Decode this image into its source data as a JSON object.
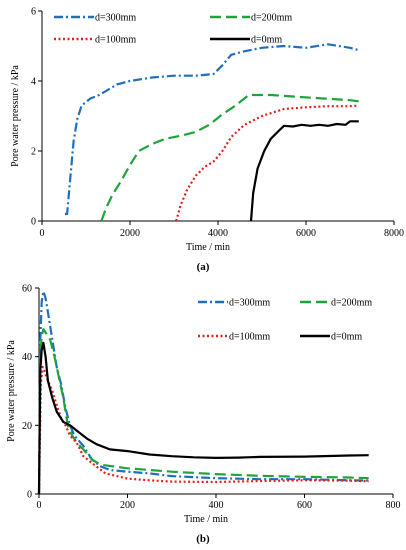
{
  "colors": {
    "d300": "#1f6fc1",
    "d200": "#1fa43a",
    "d100": "#e0201a",
    "d0": "#000000"
  },
  "chart_data": [
    {
      "type": "line",
      "panel_label": "(a)",
      "xlabel": "Time / min",
      "ylabel": "Pore water pressure / kPa",
      "xlim": [
        0,
        8000
      ],
      "ylim": [
        0,
        6
      ],
      "xticks": [
        "0",
        "2000",
        "4000",
        "6000",
        "8000"
      ],
      "yticks": [
        "0",
        "2",
        "4",
        "6"
      ],
      "grid": false,
      "legend_placement": "top",
      "series": [
        {
          "name": "d=300mm",
          "style": "dashdot",
          "color_key": "d300",
          "points": [
            [
              520,
              0.2
            ],
            [
              570,
              0.2
            ],
            [
              640,
              1.2
            ],
            [
              720,
              2.3
            ],
            [
              800,
              2.9
            ],
            [
              900,
              3.3
            ],
            [
              1100,
              3.5
            ],
            [
              1300,
              3.6
            ],
            [
              1500,
              3.75
            ],
            [
              1700,
              3.9
            ],
            [
              2000,
              4.0
            ],
            [
              2500,
              4.1
            ],
            [
              3000,
              4.15
            ],
            [
              3500,
              4.15
            ],
            [
              3900,
              4.2
            ],
            [
              4100,
              4.45
            ],
            [
              4300,
              4.75
            ],
            [
              4600,
              4.85
            ],
            [
              5000,
              4.95
            ],
            [
              5500,
              5.0
            ],
            [
              6000,
              4.95
            ],
            [
              6500,
              5.05
            ],
            [
              7000,
              4.95
            ],
            [
              7200,
              4.88
            ]
          ]
        },
        {
          "name": "d=200mm",
          "style": "longdash",
          "color_key": "d200",
          "points": [
            [
              1350,
              0
            ],
            [
              1450,
              0.35
            ],
            [
              1600,
              0.75
            ],
            [
              1800,
              1.15
            ],
            [
              2000,
              1.6
            ],
            [
              2200,
              2.0
            ],
            [
              2500,
              2.2
            ],
            [
              2800,
              2.35
            ],
            [
              3200,
              2.45
            ],
            [
              3500,
              2.55
            ],
            [
              3800,
              2.75
            ],
            [
              4100,
              3.05
            ],
            [
              4400,
              3.3
            ],
            [
              4700,
              3.6
            ],
            [
              5200,
              3.6
            ],
            [
              5800,
              3.55
            ],
            [
              6400,
              3.5
            ],
            [
              7000,
              3.45
            ],
            [
              7200,
              3.42
            ]
          ]
        },
        {
          "name": "d=100mm",
          "style": "dotted",
          "color_key": "d100",
          "points": [
            [
              3050,
              0
            ],
            [
              3150,
              0.45
            ],
            [
              3300,
              0.9
            ],
            [
              3500,
              1.3
            ],
            [
              3700,
              1.55
            ],
            [
              3900,
              1.7
            ],
            [
              4100,
              2.0
            ],
            [
              4300,
              2.4
            ],
            [
              4600,
              2.75
            ],
            [
              5000,
              3.0
            ],
            [
              5500,
              3.2
            ],
            [
              6000,
              3.25
            ],
            [
              6500,
              3.28
            ],
            [
              7000,
              3.28
            ],
            [
              7200,
              3.3
            ]
          ]
        },
        {
          "name": "d=0mm",
          "style": "solid",
          "color_key": "d0",
          "points": [
            [
              4750,
              0
            ],
            [
              4800,
              0.8
            ],
            [
              4900,
              1.5
            ],
            [
              5050,
              2.0
            ],
            [
              5200,
              2.35
            ],
            [
              5400,
              2.6
            ],
            [
              5500,
              2.72
            ],
            [
              5700,
              2.7
            ],
            [
              5900,
              2.75
            ],
            [
              6100,
              2.72
            ],
            [
              6300,
              2.75
            ],
            [
              6500,
              2.72
            ],
            [
              6700,
              2.77
            ],
            [
              6900,
              2.75
            ],
            [
              7000,
              2.85
            ],
            [
              7200,
              2.85
            ]
          ]
        }
      ]
    },
    {
      "type": "line",
      "panel_label": "(b)",
      "xlabel": "Time / min",
      "ylabel": "Pore water pressure / kPa",
      "xlim": [
        0,
        800
      ],
      "ylim": [
        0,
        60
      ],
      "xticks": [
        "0",
        "200",
        "400",
        "600",
        "800"
      ],
      "yticks": [
        "0",
        "20",
        "40",
        "60"
      ],
      "grid": false,
      "legend_placement": "top-right",
      "series": [
        {
          "name": "d=300mm",
          "style": "dashdot",
          "color_key": "d300",
          "points": [
            [
              0,
              0
            ],
            [
              3,
              45
            ],
            [
              6,
              56
            ],
            [
              10,
              59
            ],
            [
              15,
              57
            ],
            [
              20,
              53
            ],
            [
              30,
              45
            ],
            [
              40,
              37
            ],
            [
              50,
              32
            ],
            [
              60,
              25
            ],
            [
              70,
              20
            ],
            [
              80,
              17
            ],
            [
              100,
              14
            ],
            [
              120,
              10
            ],
            [
              140,
              8
            ],
            [
              160,
              7
            ],
            [
              200,
              6.5
            ],
            [
              250,
              6
            ],
            [
              300,
              5.2
            ],
            [
              400,
              4.6
            ],
            [
              500,
              4.3
            ],
            [
              600,
              4.3
            ],
            [
              700,
              4.0
            ],
            [
              745,
              3.9
            ]
          ]
        },
        {
          "name": "d=200mm",
          "style": "longdash",
          "color_key": "d200",
          "points": [
            [
              0,
              0
            ],
            [
              3,
              40
            ],
            [
              6,
              46
            ],
            [
              10,
              48
            ],
            [
              15,
              47
            ],
            [
              25,
              45
            ],
            [
              35,
              40
            ],
            [
              45,
              34
            ],
            [
              55,
              28
            ],
            [
              65,
              20
            ],
            [
              75,
              17
            ],
            [
              85,
              15
            ],
            [
              100,
              13
            ],
            [
              120,
              10
            ],
            [
              140,
              8.5
            ],
            [
              170,
              8
            ],
            [
              200,
              7.5
            ],
            [
              250,
              7
            ],
            [
              300,
              6.5
            ],
            [
              400,
              5.8
            ],
            [
              500,
              5.3
            ],
            [
              600,
              5.0
            ],
            [
              700,
              4.8
            ],
            [
              745,
              4.6
            ]
          ]
        },
        {
          "name": "d=100mm",
          "style": "dotted",
          "color_key": "d100",
          "points": [
            [
              0,
              0
            ],
            [
              4,
              32
            ],
            [
              8,
              37
            ],
            [
              12,
              36
            ],
            [
              20,
              33
            ],
            [
              30,
              30
            ],
            [
              40,
              26
            ],
            [
              50,
              22
            ],
            [
              60,
              20
            ],
            [
              70,
              17
            ],
            [
              85,
              15
            ],
            [
              100,
              11
            ],
            [
              120,
              9
            ],
            [
              150,
              6
            ],
            [
              200,
              4.5
            ],
            [
              250,
              4.0
            ],
            [
              300,
              3.6
            ],
            [
              400,
              3.5
            ],
            [
              500,
              3.8
            ],
            [
              600,
              4.0
            ],
            [
              700,
              3.9
            ],
            [
              745,
              3.7
            ]
          ]
        },
        {
          "name": "d=0mm",
          "style": "solid",
          "color_key": "d0",
          "points": [
            [
              0,
              0
            ],
            [
              3,
              36
            ],
            [
              6,
              42
            ],
            [
              10,
              44
            ],
            [
              15,
              40
            ],
            [
              20,
              33
            ],
            [
              30,
              28
            ],
            [
              40,
              24
            ],
            [
              55,
              21
            ],
            [
              70,
              20
            ],
            [
              90,
              18
            ],
            [
              110,
              16
            ],
            [
              130,
              14.5
            ],
            [
              160,
              13
            ],
            [
              200,
              12.5
            ],
            [
              250,
              11.5
            ],
            [
              300,
              11
            ],
            [
              350,
              10.7
            ],
            [
              400,
              10.5
            ],
            [
              450,
              10.6
            ],
            [
              500,
              10.8
            ],
            [
              600,
              10.9
            ],
            [
              700,
              11.2
            ],
            [
              745,
              11.3
            ]
          ]
        }
      ]
    }
  ]
}
